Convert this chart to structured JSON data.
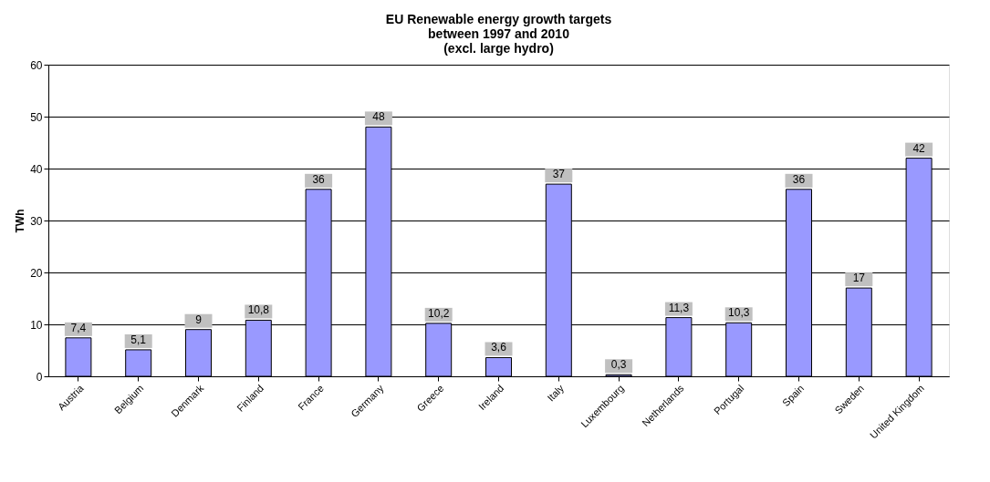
{
  "chart_data": {
    "type": "bar",
    "title": [
      "EU Renewable energy growth targets",
      "between 1997 and 2010",
      "(excl. large hydro)"
    ],
    "ylabel": "TWh",
    "categories": [
      "Austria",
      "Belgium",
      "Denmark",
      "Finland",
      "France",
      "Germany",
      "Greece",
      "Ireland",
      "Italy",
      "Luxembourg",
      "Netherlands",
      "Portugal",
      "Spain",
      "Sweden",
      "United Kingdom"
    ],
    "values": [
      7.4,
      5.1,
      9,
      10.8,
      36,
      48,
      10.2,
      3.6,
      37,
      0.3,
      11.3,
      10.3,
      36,
      17,
      42
    ],
    "value_labels": [
      "7,4",
      "5,1",
      "9",
      "10,8",
      "36",
      "48",
      "10,2",
      "3,6",
      "37",
      "0,3",
      "11,3",
      "10,3",
      "36",
      "17",
      "42"
    ],
    "color": "#9999ff",
    "ylim": [
      0,
      60
    ],
    "yticks": [
      0,
      10,
      20,
      30,
      40,
      50,
      60
    ],
    "grid": "y"
  }
}
